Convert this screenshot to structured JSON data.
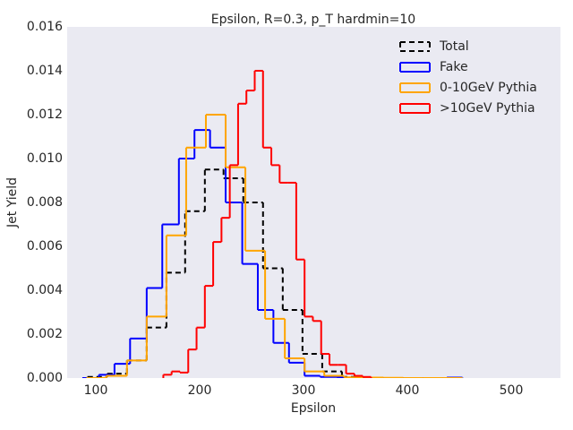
{
  "chart_data": {
    "type": "histogram",
    "title": "Epsilon, R=0.3, p_T hardmin=10",
    "xlabel": "Epsilon",
    "ylabel": "Jet Yield",
    "xlim": [
      72.4,
      547.4
    ],
    "ylim": [
      0,
      0.016
    ],
    "xticks": [
      100,
      200,
      300,
      400,
      500
    ],
    "yticks": [
      {
        "value": 0,
        "label": "0.000"
      },
      {
        "value": 0.002,
        "label": "0.002"
      },
      {
        "value": 0.004,
        "label": "0.004"
      },
      {
        "value": 0.006,
        "label": "0.006"
      },
      {
        "value": 0.008,
        "label": "0.008"
      },
      {
        "value": 0.01,
        "label": "0.010"
      },
      {
        "value": 0.012,
        "label": "0.012"
      },
      {
        "value": 0.014,
        "label": "0.014"
      },
      {
        "value": 0.016,
        "label": "0.016"
      }
    ],
    "grid": false,
    "background": "#eaeaf2",
    "legend": "upper right",
    "series": [
      {
        "name": "Total",
        "color": "#000000",
        "linestyle": "dashed",
        "bins": [
          92,
          111,
          130,
          149,
          168,
          186,
          205,
          223,
          242,
          261,
          280,
          299,
          318,
          337,
          355,
          374
        ],
        "values": [
          5e-05,
          0.0002,
          0.0008,
          0.0023,
          0.0048,
          0.0076,
          0.0095,
          0.0091,
          0.008,
          0.005,
          0.0031,
          0.0011,
          0.0003,
          5e-05,
          2e-05
        ]
      },
      {
        "name": "Fake",
        "color": "#0000ff",
        "linestyle": "solid",
        "bins": [
          87,
          103,
          118,
          133,
          149,
          164,
          180,
          195,
          210,
          225,
          241,
          256,
          271,
          286,
          301,
          316,
          332,
          347,
          362,
          377,
          392,
          408,
          423,
          438,
          453
        ],
        "values": [
          0,
          0.00015,
          0.00065,
          0.0018,
          0.0041,
          0.007,
          0.01,
          0.0113,
          0.0105,
          0.008,
          0.0052,
          0.0031,
          0.0016,
          0.0007,
          0.0001,
          5e-05,
          2e-05,
          0,
          0,
          0,
          0,
          0,
          0,
          2e-05
        ]
      },
      {
        "name": "0-10GeV Pythia",
        "color": "#ffa500",
        "linestyle": "solid",
        "bins": [
          91,
          110,
          130,
          149,
          168,
          187,
          206,
          225,
          244,
          263,
          282,
          301,
          320,
          339,
          358,
          377,
          396,
          415,
          434,
          453
        ],
        "values": [
          0,
          0.0001,
          0.0008,
          0.0028,
          0.0065,
          0.0105,
          0.012,
          0.0096,
          0.0058,
          0.0027,
          0.0009,
          0.0003,
          0.0001,
          3e-05,
          2e-05,
          1e-05,
          0,
          0,
          0
        ]
      },
      {
        "name": ">10GeV Pythia",
        "color": "#ff0000",
        "linestyle": "solid",
        "bins": [
          165,
          173,
          181,
          189,
          197,
          205,
          213,
          221,
          229,
          237,
          245,
          253,
          261,
          269,
          277,
          285,
          293,
          301,
          309,
          317,
          325,
          333,
          341,
          349,
          357,
          365
        ],
        "values": [
          0.00015,
          0.0003,
          0.00025,
          0.0013,
          0.0023,
          0.0042,
          0.0062,
          0.0073,
          0.0097,
          0.0125,
          0.0131,
          0.014,
          0.0105,
          0.0097,
          0.0089,
          0.0089,
          0.0054,
          0.0028,
          0.0026,
          0.0011,
          0.0006,
          0.0006,
          0.0002,
          0.0001,
          5e-05
        ]
      }
    ]
  }
}
